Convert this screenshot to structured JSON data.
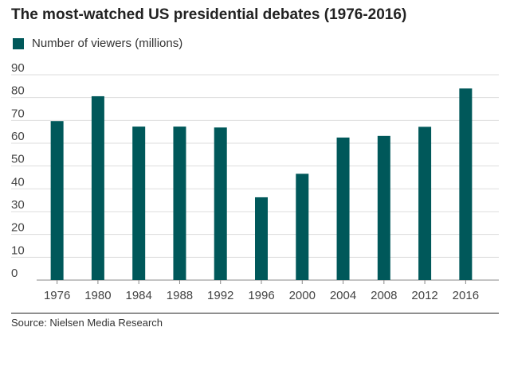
{
  "colors": {
    "bar": "#00585a",
    "grid": "#dddddd",
    "axis": "#888888"
  },
  "legend": {
    "label": "Number of viewers (millions)"
  },
  "source": "Source: Nielsen Media Research",
  "chart_data": {
    "type": "bar",
    "title": "The most-watched US presidential debates (1976-2016)",
    "categories": [
      "1976",
      "1980",
      "1984",
      "1988",
      "1992",
      "1996",
      "2000",
      "2004",
      "2008",
      "2012",
      "2016"
    ],
    "series": [
      {
        "name": "Number of viewers (millions)",
        "values": [
          69.7,
          80.6,
          67.3,
          67.3,
          66.9,
          36.3,
          46.6,
          62.5,
          63.2,
          67.2,
          84.0
        ]
      }
    ],
    "xlabel": "",
    "ylabel": "",
    "ylim": [
      0,
      90
    ],
    "yticks": [
      0,
      10,
      20,
      30,
      40,
      50,
      60,
      70,
      80,
      90
    ],
    "grid": true,
    "legend_position": "top-left"
  }
}
